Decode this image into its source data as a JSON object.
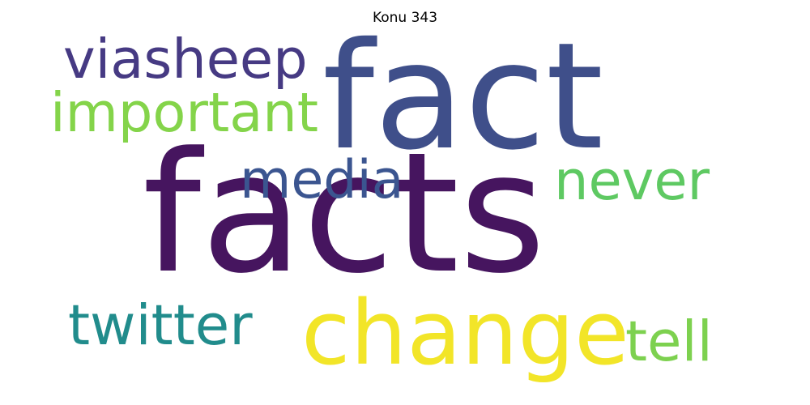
{
  "title": "Konu 343",
  "words": [
    {
      "text": "facts",
      "color": "#46155f"
    },
    {
      "text": "fact",
      "color": "#3f4f8a"
    },
    {
      "text": "change",
      "color": "#f2e528"
    },
    {
      "text": "viasheep",
      "color": "#463a83"
    },
    {
      "text": "important",
      "color": "#84d44a"
    },
    {
      "text": "media",
      "color": "#3b5590"
    },
    {
      "text": "never",
      "color": "#5ec962"
    },
    {
      "text": "twitter",
      "color": "#218c8c"
    },
    {
      "text": "tell",
      "color": "#7dd14f"
    }
  ]
}
